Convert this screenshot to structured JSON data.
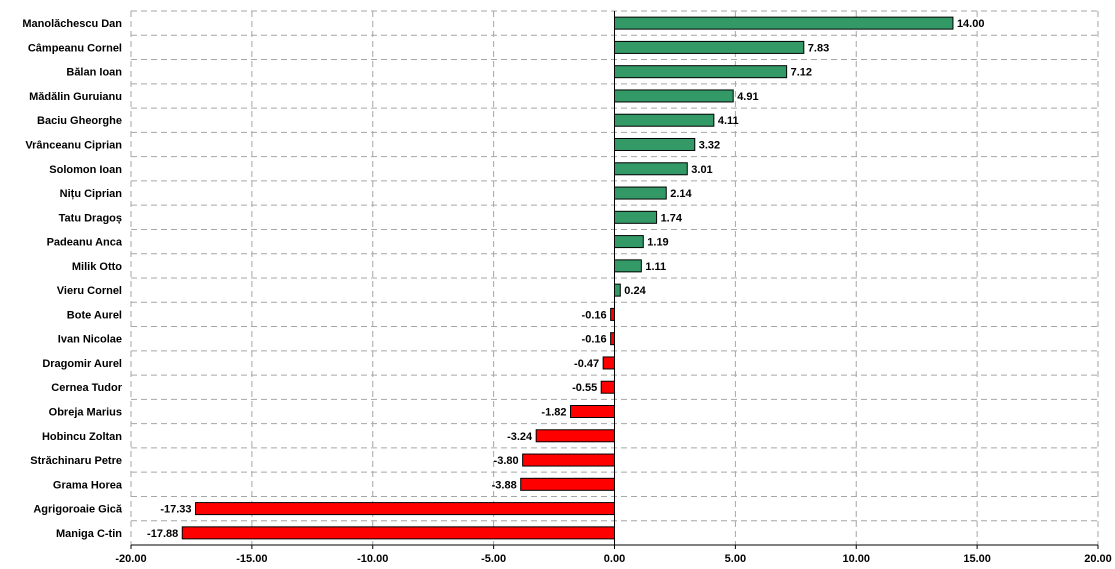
{
  "chart_data": {
    "type": "bar",
    "orientation": "horizontal",
    "title": "",
    "xlabel": "",
    "ylabel": "",
    "xlim": [
      -20,
      20
    ],
    "x_ticks": [
      -20,
      -15,
      -10,
      -5,
      0,
      5,
      10,
      15,
      20
    ],
    "x_tick_labels": [
      "-20.00",
      "-15.00",
      "-10.00",
      "-5.00",
      "0.00",
      "5.00",
      "10.00",
      "15.00",
      "20.00"
    ],
    "grid": true,
    "legend": "none",
    "colors": {
      "positive": "#339966",
      "negative": "#ff0000"
    },
    "categories": [
      "Manolăchescu Dan",
      "Câmpeanu Cornel",
      "Bălan Ioan",
      "Mădălin Guruianu",
      "Baciu Gheorghe",
      "Vrânceanu Ciprian",
      "Solomon Ioan",
      "Nițu Ciprian",
      "Tatu Dragoș",
      "Padeanu Anca",
      "Milik Otto",
      "Vieru Cornel",
      "Bote Aurel",
      "Ivan Nicolae",
      "Dragomir Aurel",
      "Cernea Tudor",
      "Obreja Marius",
      "Hobincu Zoltan",
      "Străchinaru Petre",
      "Grama Horea",
      "Agrigoroaie Gică",
      "Maniga C-tin"
    ],
    "values": [
      14.0,
      7.83,
      7.12,
      4.91,
      4.11,
      3.32,
      3.01,
      2.14,
      1.74,
      1.19,
      1.11,
      0.24,
      -0.16,
      -0.16,
      -0.47,
      -0.55,
      -1.82,
      -3.24,
      -3.8,
      -3.88,
      -17.33,
      -17.88
    ],
    "value_labels": [
      "14.00",
      "7.83",
      "7.12",
      "4.91",
      "4.11",
      "3.32",
      "3.01",
      "2.14",
      "1.74",
      "1.19",
      "1.11",
      "0.24",
      "-0.16",
      "-0.16",
      "-0.47",
      "-0.55",
      "-1.82",
      "-3.24",
      "-3.80",
      "-3.88",
      "-17.33",
      "-17.88"
    ]
  }
}
